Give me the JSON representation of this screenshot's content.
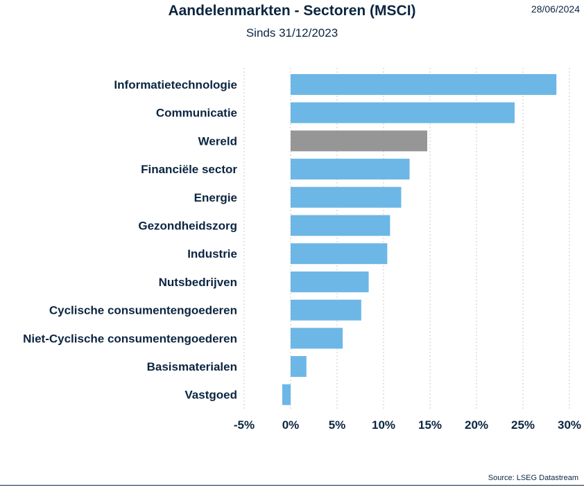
{
  "header": {
    "title": "Aandelenmarkten - Sectoren (MSCI)",
    "subtitle": "Sinds 31/12/2023",
    "date": "28/06/2024"
  },
  "footer": {
    "source": "Source: LSEG Datastream"
  },
  "colors": {
    "bar": "#6cb7e6",
    "highlight": "#969696",
    "grid": "#c8c8c8",
    "text": "#0b2540"
  },
  "chart_data": {
    "type": "bar",
    "orientation": "horizontal",
    "title": "Aandelenmarkten - Sectoren (MSCI)",
    "subtitle": "Sinds 31/12/2023",
    "categories": [
      "Informatietechnologie",
      "Communicatie",
      "Wereld",
      "Financiële sector",
      "Energie",
      "Gezondheidszorg",
      "Industrie",
      "Nutsbedrijven",
      "Cyclische consumentengoederen",
      "Niet-Cyclische consumentengoederen",
      "Basismaterialen",
      "Vastgoed"
    ],
    "values": [
      28.6,
      24.1,
      14.7,
      12.8,
      11.9,
      10.7,
      10.4,
      8.4,
      7.6,
      5.6,
      1.7,
      -0.9
    ],
    "highlight_category": "Wereld",
    "xlim": [
      -5,
      30
    ],
    "xticks": [
      -5,
      0,
      5,
      10,
      15,
      20,
      25,
      30
    ],
    "xtick_labels": [
      "-5%",
      "0%",
      "5%",
      "10%",
      "15%",
      "20%",
      "25%",
      "30%"
    ],
    "grid": "vertical dotted",
    "xlabel": "",
    "ylabel": ""
  }
}
